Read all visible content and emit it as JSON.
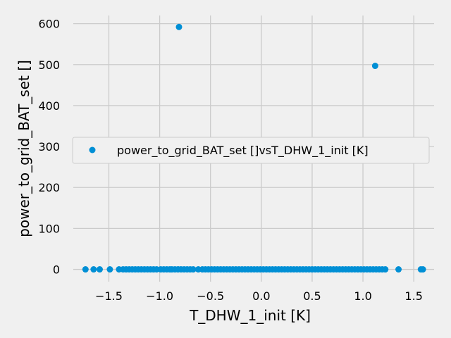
{
  "chart_data": {
    "type": "scatter",
    "title": "",
    "xlabel": "T_DHW_1_init [K]",
    "ylabel": "power_to_grid_BAT_set []",
    "xlim": [
      -1.85,
      1.7
    ],
    "ylim": [
      -30,
      620
    ],
    "xticks": [
      -1.5,
      -1.0,
      -0.5,
      0.0,
      0.5,
      1.0,
      1.5
    ],
    "xtick_labels": [
      "−1.5",
      "−1.0",
      "−0.5",
      "0.0",
      "0.5",
      "1.0",
      "1.5"
    ],
    "yticks": [
      0,
      100,
      200,
      300,
      400,
      500,
      600
    ],
    "ytick_labels": [
      "0",
      "100",
      "200",
      "300",
      "400",
      "500",
      "600"
    ],
    "grid": true,
    "legend_position": "center-right",
    "series": [
      {
        "name": "power_to_grid_BAT_set []vsT_DHW_1_init [K]",
        "color": "#008fd5",
        "x": [
          -0.81,
          1.12,
          -1.73,
          -1.65,
          -1.59,
          -1.49,
          -1.4,
          -1.36,
          -1.33,
          -1.3,
          -1.27,
          -1.24,
          -1.21,
          -1.18,
          -1.15,
          -1.12,
          -1.09,
          -1.06,
          -1.03,
          -0.99,
          -0.96,
          -0.93,
          -0.9,
          -0.88,
          -0.85,
          -0.82,
          -0.79,
          -0.76,
          -0.73,
          -0.7,
          -0.67,
          -0.62,
          -0.58,
          -0.55,
          -0.52,
          -0.49,
          -0.46,
          -0.43,
          -0.4,
          -0.37,
          -0.34,
          -0.31,
          -0.28,
          -0.25,
          -0.22,
          -0.19,
          -0.16,
          -0.13,
          -0.1,
          -0.07,
          -0.04,
          -0.01,
          0.02,
          0.05,
          0.08,
          0.11,
          0.14,
          0.17,
          0.2,
          0.23,
          0.26,
          0.29,
          0.32,
          0.35,
          0.38,
          0.41,
          0.44,
          0.47,
          0.5,
          0.53,
          0.56,
          0.59,
          0.62,
          0.65,
          0.68,
          0.71,
          0.74,
          0.77,
          0.8,
          0.83,
          0.86,
          0.89,
          0.92,
          0.95,
          0.98,
          1.01,
          1.04,
          1.07,
          1.1,
          1.13,
          1.16,
          1.19,
          1.22,
          1.35,
          1.57,
          1.59
        ],
        "y": [
          592,
          497,
          0,
          0,
          0,
          0,
          0,
          0,
          0,
          0,
          0,
          0,
          0,
          0,
          0,
          0,
          0,
          0,
          0,
          0,
          0,
          0,
          0,
          0,
          0,
          0,
          0,
          0,
          0,
          0,
          0,
          0,
          0,
          0,
          0,
          0,
          0,
          0,
          0,
          0,
          0,
          0,
          0,
          0,
          0,
          0,
          0,
          0,
          0,
          0,
          0,
          0,
          0,
          0,
          0,
          0,
          0,
          0,
          0,
          0,
          0,
          0,
          0,
          0,
          0,
          0,
          0,
          0,
          0,
          0,
          0,
          0,
          0,
          0,
          0,
          0,
          0,
          0,
          0,
          0,
          0,
          0,
          0,
          0,
          0,
          0,
          0,
          0,
          0,
          0,
          0,
          0,
          0,
          0,
          0,
          0
        ]
      }
    ]
  }
}
